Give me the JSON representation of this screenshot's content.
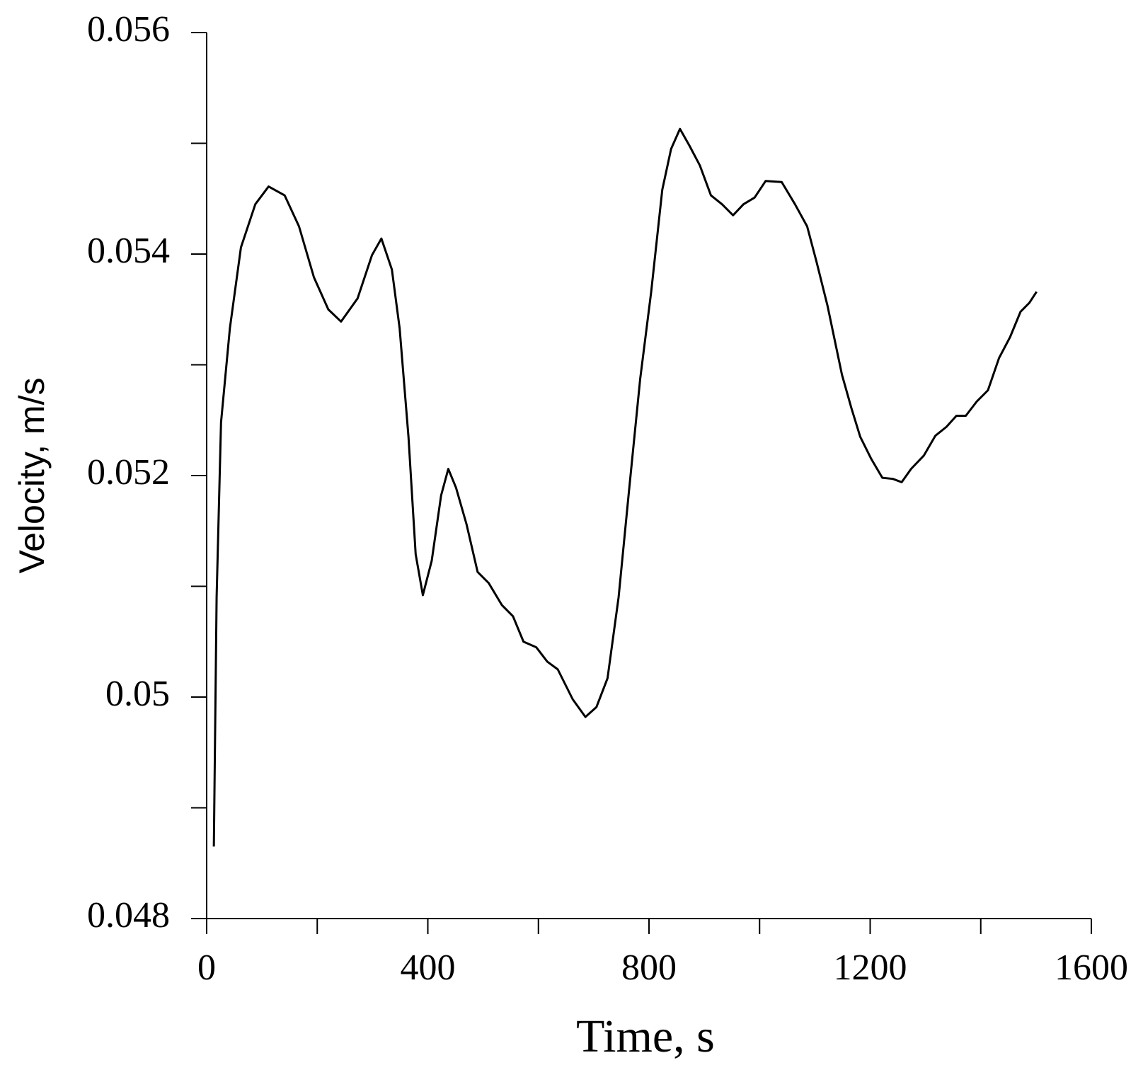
{
  "chart_data": {
    "type": "line",
    "x_label": "Time, s",
    "y_label": "Velocity, m/s",
    "x": [
      13,
      18,
      26,
      42,
      62,
      88,
      112,
      141,
      167,
      194,
      220,
      243,
      273,
      299,
      316,
      335,
      349,
      365,
      378,
      391,
      407,
      424,
      437,
      451,
      470,
      490,
      510,
      534,
      554,
      573,
      596,
      616,
      635,
      662,
      685,
      705,
      725,
      745,
      763,
      784,
      804,
      824,
      840,
      856,
      873,
      892,
      912,
      932,
      952,
      971,
      991,
      1011,
      1040,
      1064,
      1086,
      1103,
      1123,
      1149,
      1166,
      1182,
      1202,
      1222,
      1241,
      1257,
      1274,
      1297,
      1318,
      1338,
      1356,
      1373,
      1393,
      1413,
      1433,
      1453,
      1472,
      1488,
      1501
    ],
    "series": [
      {
        "color": "#000000",
        "values": [
          0.04865,
          0.0509,
          0.05248,
          0.05333,
          0.05406,
          0.05445,
          0.05461,
          0.05453,
          0.05425,
          0.05379,
          0.0535,
          0.05339,
          0.0536,
          0.05399,
          0.05414,
          0.05386,
          0.05333,
          0.05235,
          0.05129,
          0.05092,
          0.05123,
          0.05182,
          0.05206,
          0.05189,
          0.05156,
          0.05113,
          0.05103,
          0.05083,
          0.05073,
          0.0505,
          0.05045,
          0.05032,
          0.05025,
          0.04998,
          0.04982,
          0.04991,
          0.05017,
          0.0509,
          0.05182,
          0.05287,
          0.05366,
          0.05458,
          0.05495,
          0.05513,
          0.05498,
          0.0548,
          0.05453,
          0.05445,
          0.05435,
          0.05445,
          0.05451,
          0.05466,
          0.05465,
          0.05445,
          0.05425,
          0.05393,
          0.05353,
          0.05291,
          0.05261,
          0.05235,
          0.05215,
          0.05198,
          0.05197,
          0.05194,
          0.05206,
          0.05218,
          0.05236,
          0.05244,
          0.05254,
          0.05254,
          0.05267,
          0.05277,
          0.05306,
          0.05325,
          0.05348,
          0.05356,
          0.05366
        ]
      }
    ],
    "xlim": [
      0,
      1600
    ],
    "xticks": [
      0,
      400,
      800,
      1200,
      1600
    ],
    "ylim": [
      0.048,
      0.056
    ],
    "yticks": [
      0.048,
      0.05,
      0.052,
      0.054,
      0.056
    ],
    "grid": false
  }
}
